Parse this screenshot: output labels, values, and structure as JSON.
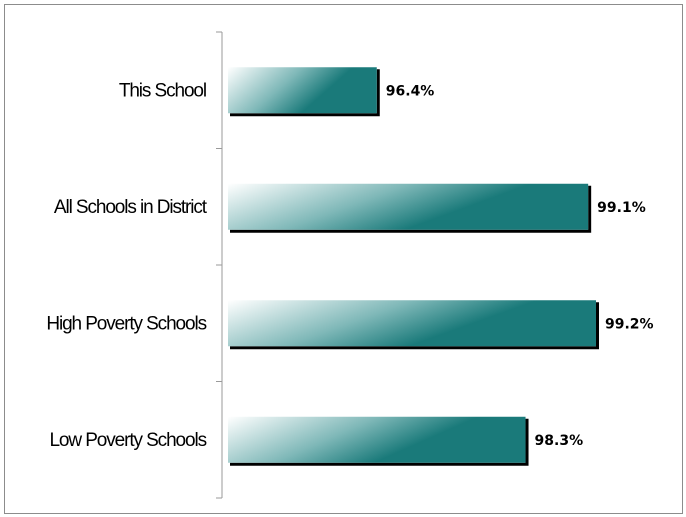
{
  "chart_data": {
    "type": "bar",
    "orientation": "horizontal",
    "categories": [
      "This School",
      "All Schools in District",
      "High Poverty Schools",
      "Low Poverty Schools"
    ],
    "values": [
      96.4,
      99.1,
      99.2,
      98.3
    ],
    "value_labels": [
      "96.4%",
      "99.1%",
      "99.2%",
      "98.3%"
    ],
    "xlim": [
      94.5,
      100
    ],
    "title": "",
    "xlabel": "",
    "ylabel": "",
    "grid": false,
    "legend": "none",
    "bar_color": "#1a7a7a",
    "bar_fade_color": "#ffffff",
    "shadow_color": "#000000"
  }
}
